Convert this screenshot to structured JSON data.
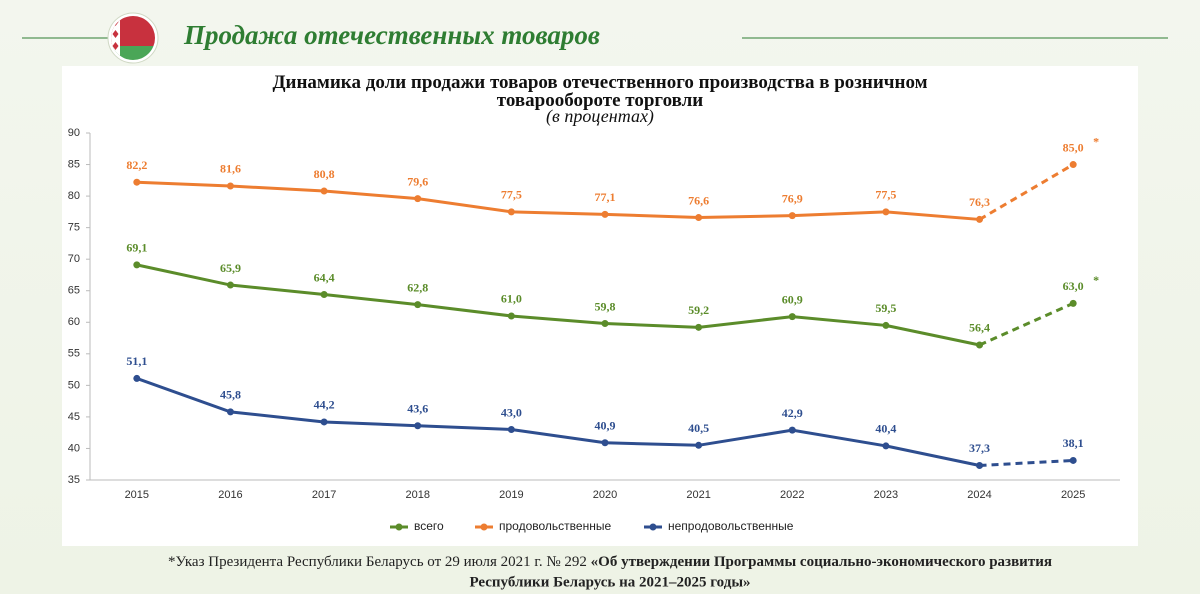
{
  "header": {
    "title": "Продажа отечественных товаров"
  },
  "chart_data": {
    "type": "line",
    "title": "Динамика доли продажи товаров отечественного производства в розничном товарообороте торговли",
    "subtitle": "(в процентах)",
    "categories": [
      "2015",
      "2016",
      "2017",
      "2018",
      "2019",
      "2020",
      "2021",
      "2022",
      "2023",
      "2024",
      "2025"
    ],
    "ylim": [
      35,
      90
    ],
    "yticks": [
      35,
      40,
      45,
      50,
      55,
      60,
      65,
      70,
      75,
      80,
      85,
      90
    ],
    "grid": false,
    "legend": "bottom",
    "series": [
      {
        "name": "всего",
        "color": "#5b8c2a",
        "values": [
          69.1,
          65.9,
          64.4,
          62.8,
          61.0,
          59.8,
          59.2,
          60.9,
          59.5,
          56.4,
          63.0
        ],
        "value_labels": [
          "69,1",
          "65,9",
          "64,4",
          "62,8",
          "61,0",
          "59,8",
          "59,2",
          "60,9",
          "59,5",
          "56,4",
          "63,0"
        ],
        "mark": "*"
      },
      {
        "name": "продовольственные",
        "color": "#ed7d31",
        "values": [
          82.2,
          81.6,
          80.8,
          79.6,
          77.5,
          77.1,
          76.6,
          76.9,
          77.5,
          76.3,
          85.0
        ],
        "value_labels": [
          "82,2",
          "81,6",
          "80,8",
          "79,6",
          "77,5",
          "77,1",
          "76,6",
          "76,9",
          "77,5",
          "76,3",
          "85,0"
        ],
        "mark": "*"
      },
      {
        "name": "непродовольственные",
        "color": "#2e4e8f",
        "values": [
          51.1,
          45.8,
          44.2,
          43.6,
          43.0,
          40.9,
          40.5,
          42.9,
          40.4,
          37.3,
          38.1
        ],
        "value_labels": [
          "51,1",
          "45,8",
          "44,2",
          "43,6",
          "43,0",
          "40,9",
          "40,5",
          "42,9",
          "40,4",
          "37,3",
          "38,1"
        ]
      }
    ]
  },
  "footnote": {
    "text": "*Указ Президента Республики Беларусь от 29 июля 2021 г. № 292",
    "bold_1": "«Об утверждении Программы социально-экономического развития",
    "bold_2": "Республики Беларусь на 2021–2025 годы»"
  }
}
